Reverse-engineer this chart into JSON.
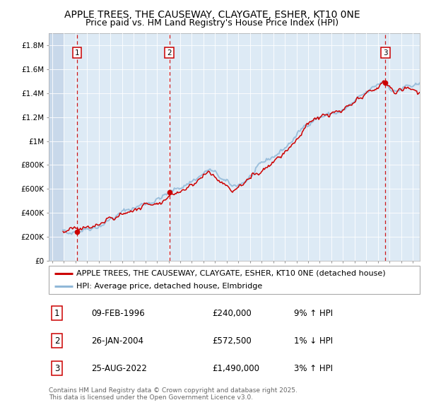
{
  "title": "APPLE TREES, THE CAUSEWAY, CLAYGATE, ESHER, KT10 0NE",
  "subtitle": "Price paid vs. HM Land Registry's House Price Index (HPI)",
  "ylabel_ticks": [
    "£0",
    "£200K",
    "£400K",
    "£600K",
    "£800K",
    "£1M",
    "£1.2M",
    "£1.4M",
    "£1.6M",
    "£1.8M"
  ],
  "ytick_values": [
    0,
    200000,
    400000,
    600000,
    800000,
    1000000,
    1200000,
    1400000,
    1600000,
    1800000
  ],
  "ylim": [
    0,
    1900000
  ],
  "xlim_start": 1993.7,
  "xlim_end": 2025.6,
  "hpi_color": "#90b8d8",
  "price_color": "#cc0000",
  "sale_marker_color": "#cc0000",
  "vline_color": "#cc0000",
  "background_plot": "#ddeaf5",
  "legend_label_price": "APPLE TREES, THE CAUSEWAY, CLAYGATE, ESHER, KT10 0NE (detached house)",
  "legend_label_hpi": "HPI: Average price, detached house, Elmbridge",
  "sales": [
    {
      "num": 1,
      "date": "09-FEB-1996",
      "year": 1996.12,
      "price": 240000,
      "pct": "9%",
      "dir": "↑"
    },
    {
      "num": 2,
      "date": "26-JAN-2004",
      "year": 2004.07,
      "price": 572500,
      "pct": "1%",
      "dir": "↓"
    },
    {
      "num": 3,
      "date": "25-AUG-2022",
      "year": 2022.65,
      "price": 1490000,
      "pct": "3%",
      "dir": "↑"
    }
  ],
  "footer": "Contains HM Land Registry data © Crown copyright and database right 2025.\nThis data is licensed under the Open Government Licence v3.0.",
  "title_fontsize": 10,
  "subtitle_fontsize": 9,
  "tick_fontsize": 7.5,
  "legend_fontsize": 8,
  "footer_fontsize": 6.5,
  "hatch_end": 1995.0
}
